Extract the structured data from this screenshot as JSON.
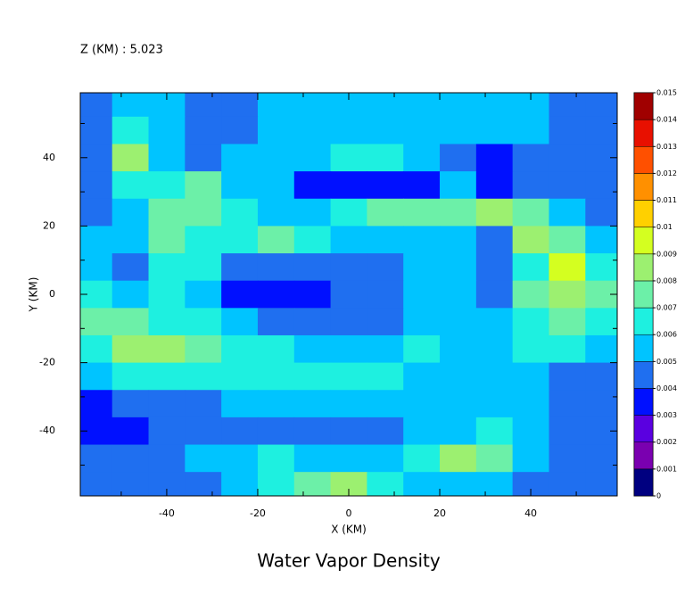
{
  "chart_data": {
    "type": "contour",
    "header": "Z (KM) : 5.023",
    "title": "Water Vapor Density",
    "xlabel": "X (KM)",
    "ylabel": "Y (KM)",
    "xlim": [
      -59,
      59
    ],
    "ylim": [
      -59,
      59
    ],
    "xticks": [
      -40,
      -20,
      0,
      20,
      40
    ],
    "yticks": [
      -40,
      -20,
      0,
      20,
      40
    ],
    "xminorticks": [
      -50,
      -30,
      -10,
      10,
      30,
      50
    ],
    "yminorticks": [
      -50,
      -30,
      -10,
      10,
      30,
      50
    ],
    "x": [
      -56,
      -48,
      -40,
      -32,
      -24,
      -16,
      -8,
      0,
      8,
      16,
      24,
      32,
      40,
      48,
      56
    ],
    "y": [
      56,
      48,
      40,
      32,
      24,
      16,
      8,
      0,
      -8,
      -16,
      -24,
      -32,
      -40,
      -48,
      -56
    ],
    "z": [
      [
        0.0045,
        0.0055,
        0.0055,
        0.0045,
        0.0045,
        0.0055,
        0.0055,
        0.0055,
        0.0055,
        0.0055,
        0.0055,
        0.0055,
        0.0055,
        0.0045,
        0.0045
      ],
      [
        0.0045,
        0.0065,
        0.0055,
        0.0045,
        0.0045,
        0.0055,
        0.0055,
        0.0055,
        0.0055,
        0.0055,
        0.0055,
        0.0055,
        0.0055,
        0.0045,
        0.0045
      ],
      [
        0.0045,
        0.0085,
        0.0055,
        0.0045,
        0.0055,
        0.0055,
        0.0055,
        0.0065,
        0.0065,
        0.0055,
        0.0045,
        0.0035,
        0.0045,
        0.0045,
        0.0045
      ],
      [
        0.0045,
        0.0065,
        0.0065,
        0.0075,
        0.0055,
        0.0055,
        0.0035,
        0.0035,
        0.0035,
        0.0035,
        0.0055,
        0.0035,
        0.0045,
        0.0045,
        0.0045
      ],
      [
        0.0045,
        0.0055,
        0.0075,
        0.0075,
        0.0065,
        0.0055,
        0.0055,
        0.0065,
        0.0075,
        0.0075,
        0.0075,
        0.0085,
        0.0075,
        0.0055,
        0.0045
      ],
      [
        0.0055,
        0.0055,
        0.0075,
        0.0065,
        0.0065,
        0.0075,
        0.0065,
        0.0055,
        0.0055,
        0.0055,
        0.0055,
        0.0045,
        0.0085,
        0.0075,
        0.0055
      ],
      [
        0.0055,
        0.0045,
        0.0065,
        0.0065,
        0.0045,
        0.0045,
        0.0045,
        0.0045,
        0.0045,
        0.0055,
        0.0055,
        0.0045,
        0.0065,
        0.0095,
        0.0065
      ],
      [
        0.0065,
        0.0055,
        0.0065,
        0.0055,
        0.0035,
        0.0035,
        0.0035,
        0.0045,
        0.0045,
        0.0055,
        0.0055,
        0.0045,
        0.0075,
        0.0085,
        0.0075
      ],
      [
        0.0075,
        0.0075,
        0.0065,
        0.0065,
        0.0055,
        0.0045,
        0.0045,
        0.0045,
        0.0045,
        0.0055,
        0.0055,
        0.0055,
        0.0065,
        0.0075,
        0.0065
      ],
      [
        0.0065,
        0.0085,
        0.0085,
        0.0075,
        0.0065,
        0.0065,
        0.0055,
        0.0055,
        0.0055,
        0.0065,
        0.0055,
        0.0055,
        0.0065,
        0.0065,
        0.0055
      ],
      [
        0.0055,
        0.0065,
        0.0065,
        0.0065,
        0.0065,
        0.0065,
        0.0065,
        0.0065,
        0.0065,
        0.0055,
        0.0055,
        0.0055,
        0.0055,
        0.0045,
        0.0045
      ],
      [
        0.0035,
        0.0045,
        0.0045,
        0.0045,
        0.0055,
        0.0055,
        0.0055,
        0.0055,
        0.0055,
        0.0055,
        0.0055,
        0.0055,
        0.0055,
        0.0045,
        0.0045
      ],
      [
        0.0035,
        0.0035,
        0.0045,
        0.0045,
        0.0045,
        0.0045,
        0.0045,
        0.0045,
        0.0045,
        0.0055,
        0.0055,
        0.0065,
        0.0055,
        0.0045,
        0.0045
      ],
      [
        0.0045,
        0.0045,
        0.0045,
        0.0055,
        0.0055,
        0.0065,
        0.0055,
        0.0055,
        0.0055,
        0.0065,
        0.0085,
        0.0075,
        0.0055,
        0.0045,
        0.0045
      ],
      [
        0.0045,
        0.0045,
        0.0045,
        0.0045,
        0.0055,
        0.0065,
        0.0075,
        0.0085,
        0.0065,
        0.0055,
        0.0055,
        0.0055,
        0.0045,
        0.0045,
        0.0045
      ]
    ],
    "levels": [
      0,
      0.001,
      0.002,
      0.003,
      0.004,
      0.005,
      0.006,
      0.007,
      0.008,
      0.009,
      0.01,
      0.011,
      0.012,
      0.013,
      0.014,
      0.015
    ],
    "colors": [
      "#000080",
      "#7a00b0",
      "#5a00e0",
      "#0010ff",
      "#1f6ff0",
      "#00c4ff",
      "#1ef0e0",
      "#6cf0a8",
      "#9cf070",
      "#d4ff20",
      "#ffd000",
      "#ff9000",
      "#ff5000",
      "#e81000",
      "#a00000"
    ]
  }
}
